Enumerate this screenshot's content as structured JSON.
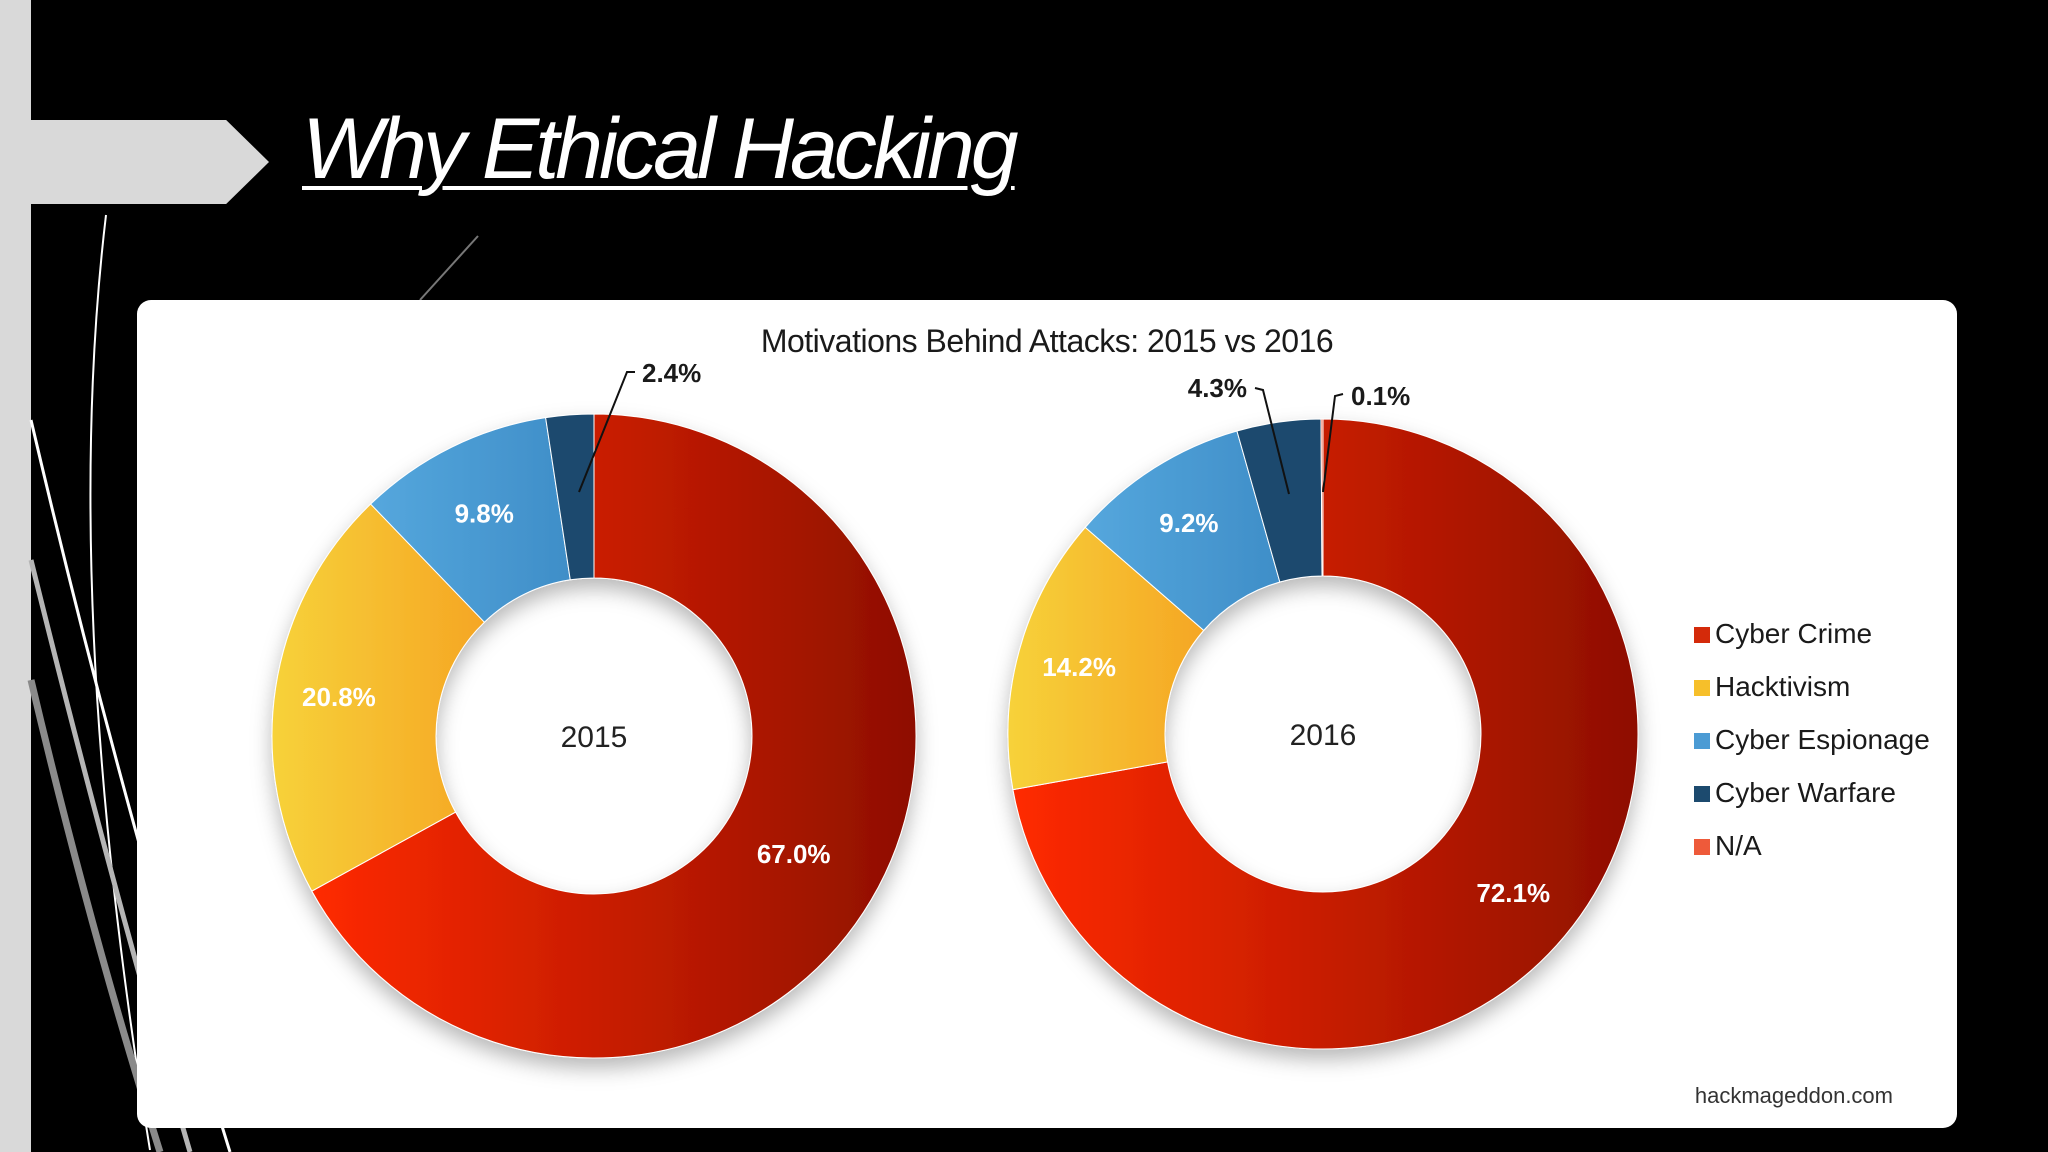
{
  "slide": {
    "title": "Why Ethical Hacking"
  },
  "colors": {
    "background": "#000000",
    "accent_bar": "#d9d9d9",
    "cyber_crime": "#d42a0a",
    "hacktivism": "#f6bf2a",
    "cyber_espionage": "#4b9bd4",
    "cyber_warfare": "#1c4a6e",
    "na": "#ee5a3a"
  },
  "chart_data": {
    "type": "pie",
    "title": "Motivations Behind Attacks: 2015 vs 2016",
    "legend_position": "right",
    "categories": [
      "Cyber Crime",
      "Hacktivism",
      "Cyber Espionage",
      "Cyber Warfare",
      "N/A"
    ],
    "charts": [
      {
        "center_label": "2015",
        "values": [
          67.0,
          20.8,
          9.8,
          2.4,
          0
        ],
        "labels": [
          "67.0%",
          "20.8%",
          "9.8%",
          "2.4%",
          ""
        ]
      },
      {
        "center_label": "2016",
        "values": [
          72.1,
          14.2,
          9.2,
          4.3,
          0.1
        ],
        "labels": [
          "72.1%",
          "14.2%",
          "9.2%",
          "4.3%",
          "0.1%"
        ]
      }
    ],
    "source": "hackmageddon.com"
  }
}
